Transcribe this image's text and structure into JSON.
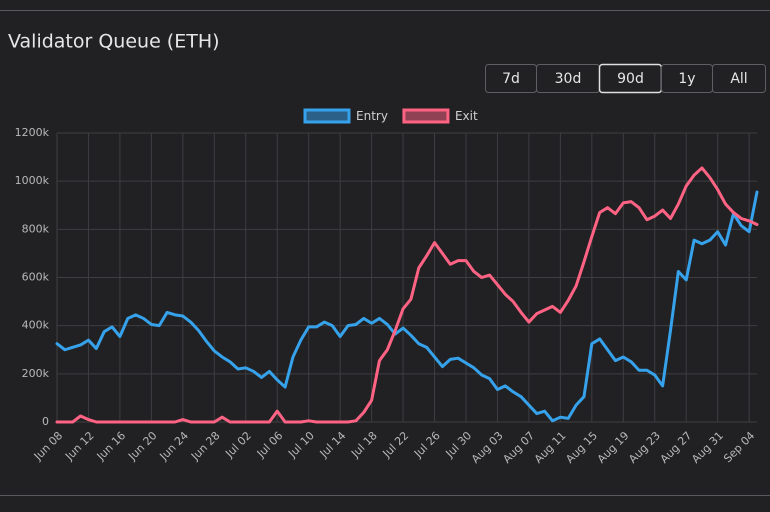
{
  "chart_data": {
    "type": "line",
    "title": "Validator Queue (ETH)",
    "range_buttons": [
      "7d",
      "30d",
      "90d",
      "1y",
      "All"
    ],
    "selected_range": 2,
    "categories": [
      "Jun 08",
      null,
      null,
      null,
      "Jun 12",
      null,
      null,
      null,
      "Jun 16",
      null,
      null,
      null,
      "Jun 20",
      null,
      null,
      null,
      "Jun 24",
      null,
      null,
      null,
      "Jun 28",
      null,
      null,
      null,
      "Jul 02",
      null,
      null,
      null,
      "Jul 06",
      null,
      null,
      null,
      "Jul 10",
      null,
      null,
      null,
      "Jul 14",
      null,
      null,
      null,
      "Jul 18",
      null,
      null,
      null,
      "Jul 22",
      null,
      null,
      null,
      "Jul 26",
      null,
      null,
      null,
      "Jul 30",
      null,
      null,
      null,
      "Aug 03",
      null,
      null,
      null,
      "Aug 07",
      null,
      null,
      null,
      "Aug 11",
      null,
      null,
      null,
      "Aug 15",
      null,
      null,
      null,
      "Aug 19",
      null,
      null,
      null,
      "Aug 23",
      null,
      null,
      null,
      "Aug 27",
      null,
      null,
      null,
      "Aug 31",
      null,
      null,
      null,
      "Sep 04",
      null
    ],
    "series": [
      {
        "name": "Entry",
        "color": "#36a2eb",
        "values": [
          325,
          300,
          310,
          320,
          340,
          305,
          375,
          395,
          355,
          430,
          445,
          430,
          405,
          400,
          455,
          445,
          440,
          415,
          380,
          335,
          295,
          270,
          250,
          220,
          225,
          210,
          185,
          210,
          175,
          145,
          270,
          340,
          395,
          395,
          415,
          400,
          355,
          400,
          405,
          430,
          410,
          430,
          405,
          365,
          390,
          360,
          325,
          310,
          270,
          230,
          260,
          265,
          245,
          225,
          195,
          180,
          135,
          150,
          125,
          105,
          70,
          35,
          45,
          5,
          20,
          15,
          70,
          105,
          325,
          345,
          300,
          255,
          270,
          250,
          215,
          215,
          195,
          150,
          380,
          625,
          590,
          755,
          740,
          755,
          790,
          735,
          865,
          815,
          790,
          955
        ]
      },
      {
        "name": "Exit",
        "color": "#ff6384",
        "values": [
          0,
          0,
          0,
          25,
          10,
          0,
          0,
          0,
          0,
          0,
          0,
          0,
          0,
          0,
          0,
          0,
          10,
          0,
          0,
          0,
          0,
          20,
          0,
          0,
          0,
          0,
          0,
          0,
          45,
          0,
          0,
          0,
          5,
          0,
          0,
          0,
          0,
          0,
          5,
          40,
          90,
          255,
          300,
          380,
          470,
          510,
          640,
          690,
          745,
          700,
          655,
          670,
          670,
          625,
          600,
          610,
          570,
          530,
          500,
          455,
          415,
          450,
          465,
          480,
          455,
          505,
          565,
          665,
          770,
          870,
          890,
          865,
          910,
          915,
          890,
          840,
          855,
          880,
          845,
          905,
          980,
          1025,
          1055,
          1015,
          965,
          905,
          870,
          845,
          835,
          820
        ]
      }
    ],
    "ylim": [
      0,
      1200
    ],
    "yticks": [
      0,
      {
        "value": 200,
        "label": "200k"
      },
      {
        "value": 400,
        "label": "400k"
      },
      {
        "value": 600,
        "label": "600k"
      },
      {
        "value": 800,
        "label": "800k"
      },
      {
        "value": 1000,
        "label": "1000k"
      },
      {
        "value": 1200,
        "label": "1200k"
      }
    ],
    "grid": true
  }
}
